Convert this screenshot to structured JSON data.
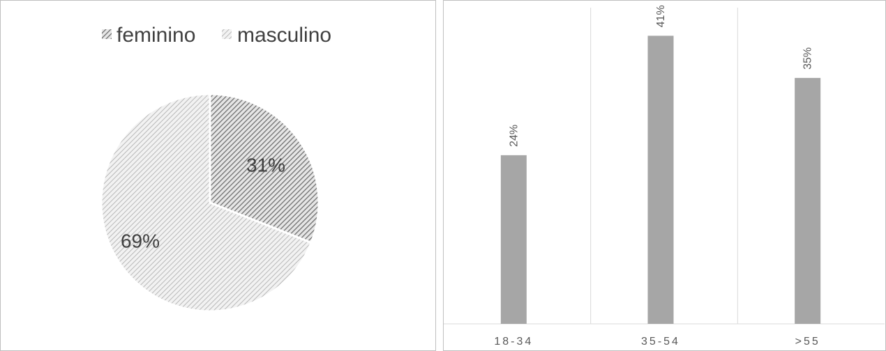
{
  "chart_data": [
    {
      "type": "pie",
      "legend_position": "top",
      "categories": [
        "feminino",
        "masculino"
      ],
      "values": [
        31,
        69
      ],
      "labels": [
        "31%",
        "69%"
      ],
      "colors": [
        "#8c8c8c",
        "#cfcfcf"
      ]
    },
    {
      "type": "bar",
      "categories": [
        "18-34",
        "35-54",
        ">55"
      ],
      "values": [
        24,
        41,
        35
      ],
      "labels": [
        "24%",
        "41%",
        "35%"
      ],
      "ylim": [
        0,
        45
      ],
      "grid": "vertical",
      "bar_color": "#a6a6a6"
    }
  ]
}
